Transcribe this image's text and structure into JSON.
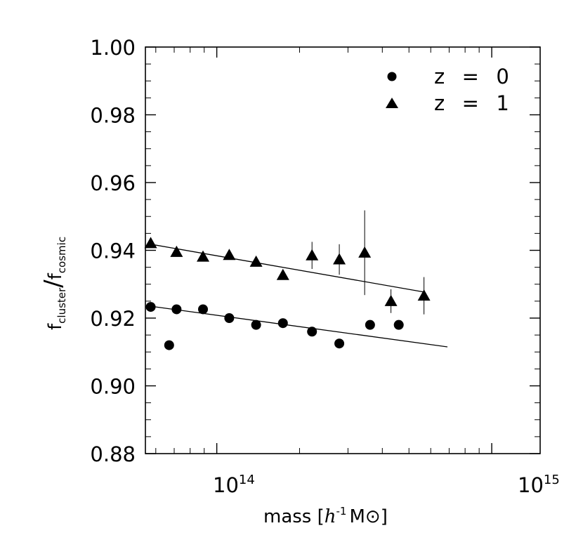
{
  "chart_data": {
    "type": "scatter",
    "xscale": "log",
    "xlim": [
      55000000000000.0,
      1500000000000000.0
    ],
    "ylim": [
      0.88,
      1.0
    ],
    "yticks": [
      {
        "value": 0.88,
        "label": "0.88"
      },
      {
        "value": 0.9,
        "label": "0.90"
      },
      {
        "value": 0.92,
        "label": "0.92"
      },
      {
        "value": 0.94,
        "label": "0.94"
      },
      {
        "value": 0.96,
        "label": "0.96"
      },
      {
        "value": 0.98,
        "label": "0.98"
      },
      {
        "value": 1.0,
        "label": "1.00"
      }
    ],
    "xticks": [
      {
        "value": 100000000000000.0,
        "base": "10",
        "exp": "14"
      },
      {
        "value": 1000000000000000.0,
        "base": "10",
        "exp": "15"
      }
    ],
    "xlabel": {
      "pre": "mass [",
      "h": "h",
      "exp": "-1",
      "msun": "M⊙",
      "post": "]"
    },
    "ylabel": {
      "f1": "f",
      "s1": "cluster",
      "slash": "/",
      "f2": "f",
      "s2": "cosmic"
    },
    "series": [
      {
        "name": "z = 0",
        "marker": "circle",
        "legend": {
          "label": "z  =  0"
        },
        "x": [
          57500000000000.0,
          71400000000000.0,
          89100000000000.0,
          111000000000000.0,
          139000000000000.0,
          174000000000000.0,
          222000000000000.0,
          279000000000000.0,
          361000000000000.0,
          459000000000000.0,
          67100000000000.0
        ],
        "y": [
          0.9233,
          0.9226,
          0.9226,
          0.92,
          0.918,
          0.9185,
          0.916,
          0.9125,
          0.918,
          0.918,
          0.912
        ],
        "yerr": [
          0,
          0,
          0,
          0,
          0,
          0,
          0,
          0,
          0,
          0,
          0
        ],
        "fit": {
          "x": [
            57500000000000.0,
            690000000000000.0
          ],
          "y": [
            0.9235,
            0.9115
          ]
        }
      },
      {
        "name": "z = 1",
        "marker": "triangle",
        "legend": {
          "label": "z  =  1"
        },
        "x": [
          57500000000000.0,
          71400000000000.0,
          89100000000000.0,
          111000000000000.0,
          139000000000000.0,
          174000000000000.0,
          222000000000000.0,
          279000000000000.0,
          345000000000000.0,
          430000000000000.0,
          567000000000000.0
        ],
        "y": [
          0.9421,
          0.9395,
          0.9381,
          0.9386,
          0.9366,
          0.9327,
          0.9385,
          0.9373,
          0.9393,
          0.925,
          0.9266
        ],
        "yerr": [
          0,
          0,
          0,
          0,
          0,
          0,
          0.004,
          0.0045,
          0.0125,
          0.0035,
          0.0055
        ],
        "fit": {
          "x": [
            57500000000000.0,
            567000000000000.0
          ],
          "y": [
            0.9418,
            0.9277
          ]
        }
      }
    ]
  }
}
